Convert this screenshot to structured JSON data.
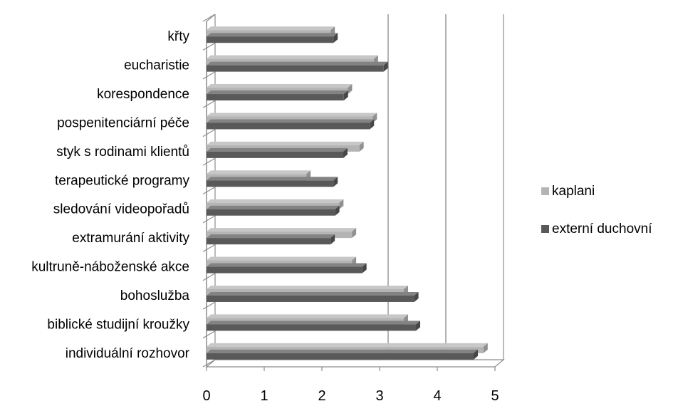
{
  "chart_data": {
    "type": "bar",
    "orientation": "horizontal",
    "style": "3d",
    "categories": [
      "křty",
      "eucharistie",
      "korespondence",
      "pospenitenciární péče",
      "styk s rodinami klientů",
      "terapeutické programy",
      "sledování videopořadů",
      "extramurání aktivity",
      "kultruně-náboženské akce",
      "bohoslužba",
      "biblické studijní kroužky",
      "individuální rozhovor"
    ],
    "series": [
      {
        "name": "kaplani",
        "color": "#b4b4b4",
        "values": [
          2.15,
          2.9,
          2.45,
          2.88,
          2.65,
          1.73,
          2.3,
          2.52,
          2.52,
          3.42,
          3.42,
          4.8
        ]
      },
      {
        "name": "externí duchovní",
        "color": "#595959",
        "values": [
          2.2,
          3.07,
          2.38,
          2.83,
          2.37,
          2.2,
          2.23,
          2.15,
          2.7,
          3.6,
          3.63,
          4.63
        ]
      }
    ],
    "xticks": [
      "0",
      "1",
      "2",
      "3",
      "4",
      "5"
    ],
    "xlim": [
      0,
      5
    ],
    "gridlines": [
      3,
      4
    ],
    "grid": true,
    "legend": "right",
    "title": "",
    "xlabel": "",
    "ylabel": ""
  }
}
